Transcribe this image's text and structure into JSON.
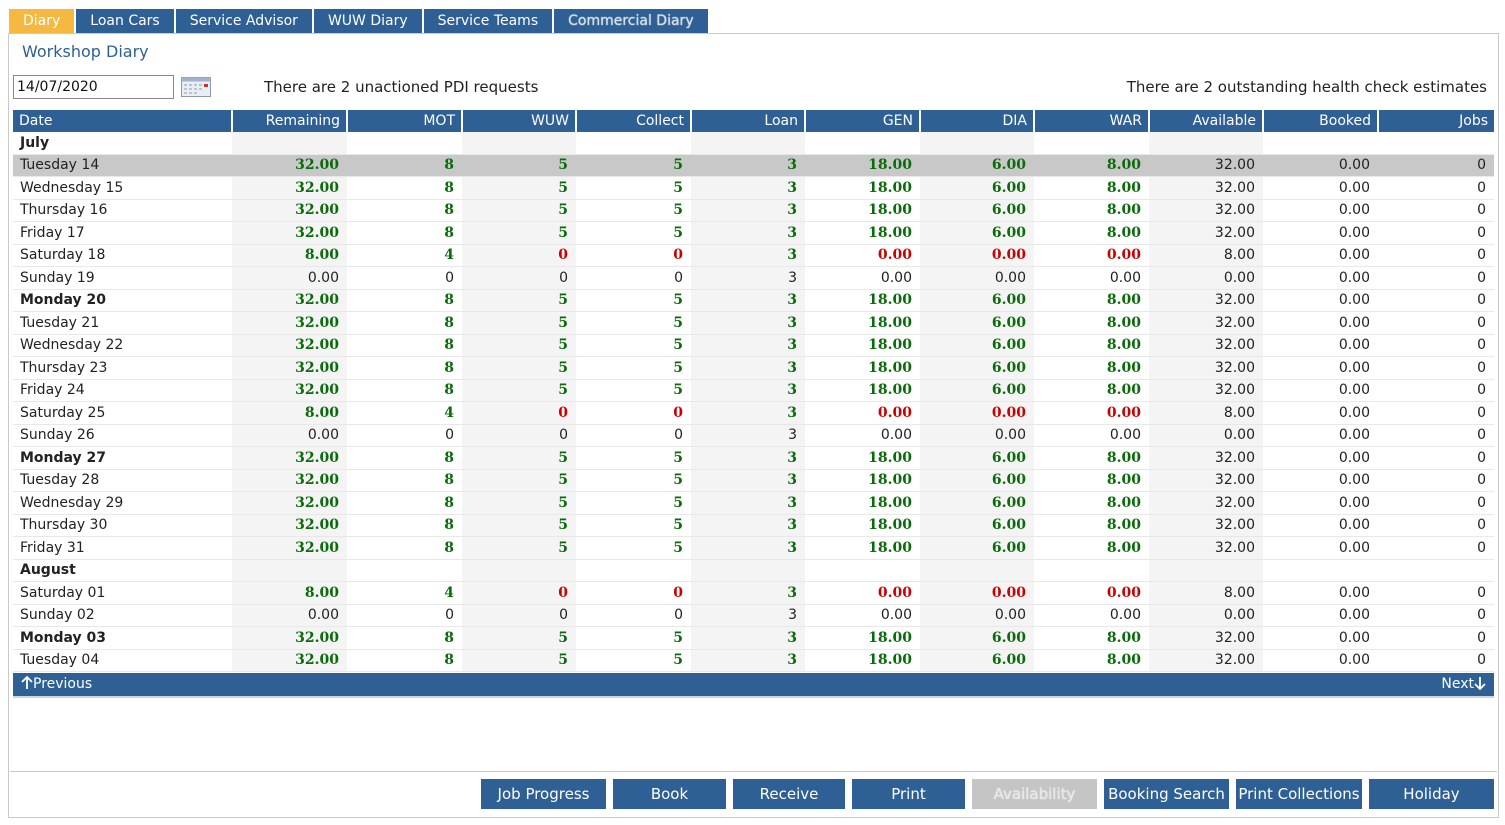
{
  "tabs": [
    {
      "label": "Diary",
      "active": true
    },
    {
      "label": "Loan Cars",
      "active": false
    },
    {
      "label": "Service Advisor",
      "active": false
    },
    {
      "label": "WUW Diary",
      "active": false
    },
    {
      "label": "Service Teams",
      "active": false
    },
    {
      "label": "Commercial Diary",
      "active": false
    }
  ],
  "title": "Workshop Diary",
  "date_input": {
    "value": "14/07/2020"
  },
  "pdi_text": "There are 2 unactioned PDI requests",
  "health_text": "There are 2 outstanding health check estimates",
  "columns": [
    "Date",
    "Remaining",
    "MOT",
    "WUW",
    "Collect",
    "Loan",
    "GEN",
    "DIA",
    "WAR",
    "Available",
    "Booked",
    "Jobs"
  ],
  "rows": [
    {
      "month": "July"
    },
    {
      "date": "Tuesday 14",
      "type": "full",
      "bold": false,
      "selected": true,
      "values": [
        "32.00",
        "8",
        "5",
        "5",
        "3",
        "18.00",
        "6.00",
        "8.00",
        "32.00",
        "0.00",
        "0"
      ]
    },
    {
      "date": "Wednesday 15",
      "type": "full",
      "bold": false,
      "values": [
        "32.00",
        "8",
        "5",
        "5",
        "3",
        "18.00",
        "6.00",
        "8.00",
        "32.00",
        "0.00",
        "0"
      ]
    },
    {
      "date": "Thursday 16",
      "type": "full",
      "bold": false,
      "values": [
        "32.00",
        "8",
        "5",
        "5",
        "3",
        "18.00",
        "6.00",
        "8.00",
        "32.00",
        "0.00",
        "0"
      ]
    },
    {
      "date": "Friday 17",
      "type": "full",
      "bold": false,
      "values": [
        "32.00",
        "8",
        "5",
        "5",
        "3",
        "18.00",
        "6.00",
        "8.00",
        "32.00",
        "0.00",
        "0"
      ]
    },
    {
      "date": "Saturday 18",
      "type": "sat",
      "bold": false,
      "values": [
        "8.00",
        "4",
        "0",
        "0",
        "3",
        "0.00",
        "0.00",
        "0.00",
        "8.00",
        "0.00",
        "0"
      ]
    },
    {
      "date": "Sunday 19",
      "type": "sun",
      "bold": false,
      "values": [
        "0.00",
        "0",
        "0",
        "0",
        "3",
        "0.00",
        "0.00",
        "0.00",
        "0.00",
        "0.00",
        "0"
      ]
    },
    {
      "date": "Monday 20",
      "type": "full",
      "bold": true,
      "values": [
        "32.00",
        "8",
        "5",
        "5",
        "3",
        "18.00",
        "6.00",
        "8.00",
        "32.00",
        "0.00",
        "0"
      ]
    },
    {
      "date": "Tuesday 21",
      "type": "full",
      "bold": false,
      "values": [
        "32.00",
        "8",
        "5",
        "5",
        "3",
        "18.00",
        "6.00",
        "8.00",
        "32.00",
        "0.00",
        "0"
      ]
    },
    {
      "date": "Wednesday 22",
      "type": "full",
      "bold": false,
      "values": [
        "32.00",
        "8",
        "5",
        "5",
        "3",
        "18.00",
        "6.00",
        "8.00",
        "32.00",
        "0.00",
        "0"
      ]
    },
    {
      "date": "Thursday 23",
      "type": "full",
      "bold": false,
      "values": [
        "32.00",
        "8",
        "5",
        "5",
        "3",
        "18.00",
        "6.00",
        "8.00",
        "32.00",
        "0.00",
        "0"
      ]
    },
    {
      "date": "Friday 24",
      "type": "full",
      "bold": false,
      "values": [
        "32.00",
        "8",
        "5",
        "5",
        "3",
        "18.00",
        "6.00",
        "8.00",
        "32.00",
        "0.00",
        "0"
      ]
    },
    {
      "date": "Saturday 25",
      "type": "sat",
      "bold": false,
      "values": [
        "8.00",
        "4",
        "0",
        "0",
        "3",
        "0.00",
        "0.00",
        "0.00",
        "8.00",
        "0.00",
        "0"
      ]
    },
    {
      "date": "Sunday 26",
      "type": "sun",
      "bold": false,
      "values": [
        "0.00",
        "0",
        "0",
        "0",
        "3",
        "0.00",
        "0.00",
        "0.00",
        "0.00",
        "0.00",
        "0"
      ]
    },
    {
      "date": "Monday 27",
      "type": "full",
      "bold": true,
      "values": [
        "32.00",
        "8",
        "5",
        "5",
        "3",
        "18.00",
        "6.00",
        "8.00",
        "32.00",
        "0.00",
        "0"
      ]
    },
    {
      "date": "Tuesday 28",
      "type": "full",
      "bold": false,
      "values": [
        "32.00",
        "8",
        "5",
        "5",
        "3",
        "18.00",
        "6.00",
        "8.00",
        "32.00",
        "0.00",
        "0"
      ]
    },
    {
      "date": "Wednesday 29",
      "type": "full",
      "bold": false,
      "values": [
        "32.00",
        "8",
        "5",
        "5",
        "3",
        "18.00",
        "6.00",
        "8.00",
        "32.00",
        "0.00",
        "0"
      ]
    },
    {
      "date": "Thursday 30",
      "type": "full",
      "bold": false,
      "values": [
        "32.00",
        "8",
        "5",
        "5",
        "3",
        "18.00",
        "6.00",
        "8.00",
        "32.00",
        "0.00",
        "0"
      ]
    },
    {
      "date": "Friday 31",
      "type": "full",
      "bold": false,
      "values": [
        "32.00",
        "8",
        "5",
        "5",
        "3",
        "18.00",
        "6.00",
        "8.00",
        "32.00",
        "0.00",
        "0"
      ]
    },
    {
      "month": "August"
    },
    {
      "date": "Saturday 01",
      "type": "sat",
      "bold": false,
      "values": [
        "8.00",
        "4",
        "0",
        "0",
        "3",
        "0.00",
        "0.00",
        "0.00",
        "8.00",
        "0.00",
        "0"
      ]
    },
    {
      "date": "Sunday 02",
      "type": "sun",
      "bold": false,
      "values": [
        "0.00",
        "0",
        "0",
        "0",
        "3",
        "0.00",
        "0.00",
        "0.00",
        "0.00",
        "0.00",
        "0"
      ]
    },
    {
      "date": "Monday 03",
      "type": "full",
      "bold": true,
      "values": [
        "32.00",
        "8",
        "5",
        "5",
        "3",
        "18.00",
        "6.00",
        "8.00",
        "32.00",
        "0.00",
        "0"
      ]
    },
    {
      "date": "Tuesday 04",
      "type": "full",
      "bold": false,
      "values": [
        "32.00",
        "8",
        "5",
        "5",
        "3",
        "18.00",
        "6.00",
        "8.00",
        "32.00",
        "0.00",
        "0"
      ]
    }
  ],
  "nav": {
    "previous": "Previous",
    "next": "Next",
    "prev_icon": "arrow-up-icon",
    "next_icon": "arrow-down-icon"
  },
  "buttons": [
    {
      "label": "Job Progress",
      "name": "job-progress-button",
      "disabled": false
    },
    {
      "label": "Book",
      "name": "book-button",
      "disabled": false
    },
    {
      "label": "Receive",
      "name": "receive-button",
      "disabled": false
    },
    {
      "label": "Print",
      "name": "print-button",
      "disabled": false
    },
    {
      "label": "Availability",
      "name": "availability-button",
      "disabled": true
    },
    {
      "label": "Booking Search",
      "name": "booking-search-button",
      "disabled": false
    },
    {
      "label": "Print Collections",
      "name": "print-collections-button",
      "disabled": false
    },
    {
      "label": "Holiday",
      "name": "holiday-button",
      "disabled": false
    }
  ],
  "colors": {
    "accent": "#2e6095",
    "active_tab": "#f5b942",
    "positive": "#0a6b0a",
    "negative": "#cc0000",
    "selected_row": "#c8c8c8"
  }
}
